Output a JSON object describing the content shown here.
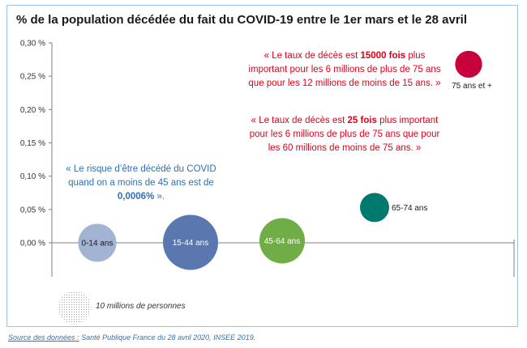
{
  "title": "% de la population décédée du fait du COVID-19 entre le 1er mars et le 28 avril",
  "chart_data": {
    "type": "scatter",
    "title": "% de la population décédée du fait du COVID-19 entre le 1er mars et le 28 avril",
    "ylim": [
      0,
      0.3
    ],
    "y_ticks": [
      "0,00 %",
      "0,05 %",
      "0,10 %",
      "0,15 %",
      "0,20 %",
      "0,25 %",
      "0,30 %"
    ],
    "y_tick_values": [
      0,
      0.05,
      0.1,
      0.15,
      0.2,
      0.25,
      0.3
    ],
    "grid": false,
    "bubbles": [
      {
        "label": "0-14 ans",
        "y": 0.0,
        "population_millions": 12,
        "color": "#a3b3d3"
      },
      {
        "label": "15-44 ans",
        "y": 0.0006,
        "population_millions": 25,
        "color": "#5a77b0"
      },
      {
        "label": "45-64 ans",
        "y": 0.003,
        "population_millions": 17,
        "color": "#70ad47"
      },
      {
        "label": "65-74 ans",
        "y": 0.053,
        "population_millions": 7,
        "color": "#007a6e"
      },
      {
        "label": "75 ans et +",
        "y": 0.268,
        "population_millions": 6,
        "color": "#c8003c"
      }
    ],
    "size_legend": {
      "label": "10 millions de personnes",
      "population_millions": 10
    }
  },
  "annotations": {
    "red1": {
      "pre": "« Le taux de décès est ",
      "bold": "15000 fois",
      "post": " plus important pour les 6 millions de plus de 75 ans que pour les 12 millions de moins de 15 ans. »"
    },
    "red2": {
      "pre": "« Le taux de décès est ",
      "bold": "25 fois",
      "post": " plus important pour les 6 millions de plus de 75 ans que pour les 60 millions de moins de 75 ans. »"
    },
    "blue": {
      "pre": "« Le risque d’être décédé du COVID quand on a moins de 45 ans est de ",
      "bold": "0,0006%",
      "post": " »."
    }
  },
  "source": {
    "label": "Source des données :",
    "text": " Santé Publique France du 28 avril 2020, INSEE 2019."
  },
  "colors": {
    "red_text": "#e0001a",
    "blue_text": "#2e6fb5",
    "frame": "#9dc3e6"
  }
}
